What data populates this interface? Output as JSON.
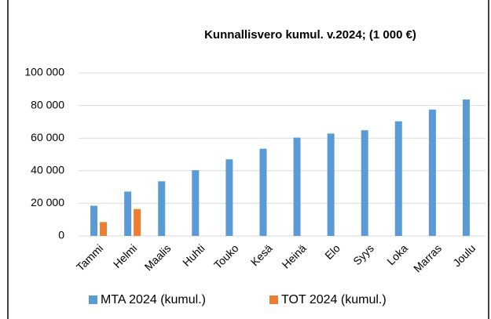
{
  "chart_data": {
    "type": "bar",
    "title": "Kunnallisvero kumul. v.2024; (1 000 €)",
    "categories": [
      "Tammi",
      "Helmi",
      "Maalis",
      "Huhti",
      "Touko",
      "Kesä",
      "Heinä",
      "Elo",
      "Syys",
      "Loka",
      "Marras",
      "Joulu"
    ],
    "series": [
      {
        "name": "MTA 2024 (kumul.)",
        "color": "#5b9bd5",
        "values": [
          18500,
          27200,
          33500,
          40300,
          47000,
          53500,
          60300,
          62800,
          64800,
          70300,
          77500,
          83700
        ]
      },
      {
        "name": "TOT 2024 (kumul.)",
        "color": "#ed7d31",
        "values": [
          8500,
          16500,
          null,
          null,
          null,
          null,
          null,
          null,
          null,
          null,
          null,
          null
        ]
      }
    ],
    "ylim": [
      0,
      100000
    ],
    "yticks": [
      0,
      {
        "value": 20000,
        "label": "20 000"
      },
      {
        "value": 40000,
        "label": "40 000"
      },
      {
        "value": 60000,
        "label": "60 000"
      },
      {
        "value": 80000,
        "label": "80 000"
      },
      {
        "value": 100000,
        "label": "100 000"
      }
    ],
    "grid": true,
    "legend": "bottom"
  }
}
